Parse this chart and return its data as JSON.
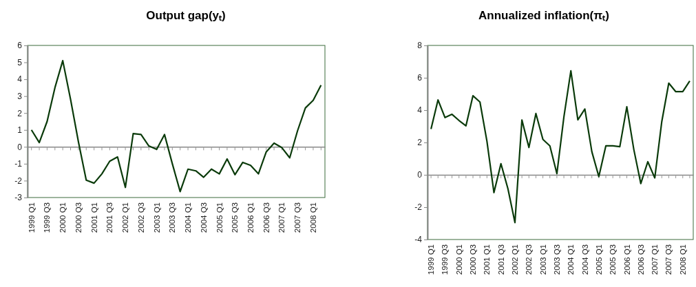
{
  "chart_data": [
    {
      "type": "line",
      "title": "Output gap(yₜ)",
      "categories": [
        "1999 Q1",
        null,
        "1999 Q3",
        null,
        "2000 Q1",
        null,
        "2000 Q3",
        null,
        "2001 Q1",
        null,
        "2001 Q3",
        null,
        "2002 Q1",
        null,
        "2002 Q3",
        null,
        "2003 Q1",
        null,
        "2003 Q3",
        null,
        "2004 Q1",
        null,
        "2004 Q3",
        null,
        "2005 Q1",
        null,
        "2005 Q3",
        null,
        "2006 Q1",
        null,
        "2006 Q3",
        null,
        "2007 Q1",
        null,
        "2007 Q3",
        null,
        "2008 Q1",
        null
      ],
      "values": [
        1.0,
        0.25,
        1.5,
        3.5,
        5.1,
        2.8,
        0.3,
        -1.97,
        -2.15,
        -1.6,
        -0.85,
        -0.6,
        -2.4,
        0.78,
        0.73,
        0.05,
        -0.15,
        0.73,
        -1.0,
        -2.65,
        -1.32,
        -1.42,
        -1.8,
        -1.32,
        -1.6,
        -0.72,
        -1.65,
        -0.92,
        -1.1,
        -1.6,
        -0.3,
        0.22,
        -0.05,
        -0.65,
        0.95,
        2.3,
        2.75,
        3.65
      ],
      "color": "#0a3a0a",
      "ylim": [
        -3,
        6
      ],
      "yticks": [
        -3,
        -2,
        -1,
        0,
        1,
        2,
        3,
        4,
        5,
        6
      ]
    },
    {
      "type": "line",
      "title": "Annualized inflation(πₜ)",
      "categories": [
        "1999 Q1",
        null,
        "1999 Q3",
        null,
        "2000 Q1",
        null,
        "2000 Q3",
        null,
        "2001 Q1",
        null,
        "2001 Q3",
        null,
        "2002 Q1",
        null,
        "2002 Q3",
        null,
        "2003 Q1",
        null,
        "2003 Q3",
        null,
        "2004 Q1",
        null,
        "2004 Q3",
        null,
        "2005 Q1",
        null,
        "2005 Q3",
        null,
        "2006 Q1",
        null,
        "2006 Q3",
        null,
        "2007 Q1",
        null,
        "2007 Q3",
        null,
        "2008 Q1",
        null
      ],
      "values": [
        2.83,
        4.63,
        3.54,
        3.74,
        3.36,
        3.03,
        4.89,
        4.5,
        2.07,
        -1.1,
        0.69,
        -0.86,
        -2.95,
        3.39,
        1.69,
        3.79,
        2.19,
        1.79,
        0.07,
        3.57,
        6.43,
        3.4,
        4.07,
        1.43,
        -0.11,
        1.79,
        1.79,
        1.74,
        4.21,
        1.57,
        -0.54,
        0.81,
        -0.19,
        3.29,
        5.67,
        5.14,
        5.14,
        5.8
      ],
      "color": "#0a3a0a",
      "ylim": [
        -4,
        8
      ],
      "yticks": [
        -4,
        -2,
        0,
        2,
        4,
        6,
        8
      ]
    }
  ]
}
